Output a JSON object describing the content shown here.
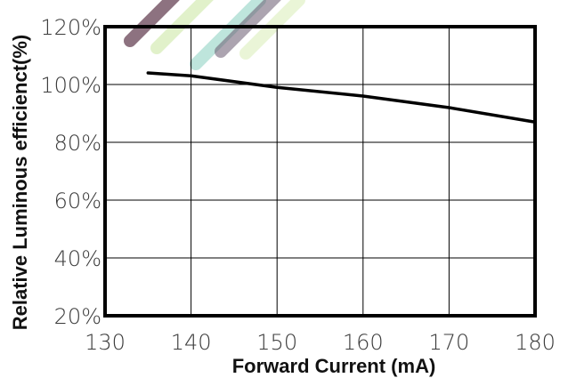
{
  "chart_data": {
    "type": "line",
    "title": "",
    "xlabel": "Forward Current (mA)",
    "ylabel": "Relative  Luminous efficienct(%)",
    "xlim": [
      130,
      180
    ],
    "ylim": [
      20,
      120
    ],
    "x_ticks": [
      130,
      140,
      150,
      160,
      170,
      180
    ],
    "x_tick_labels": [
      "130",
      "140",
      "150",
      "160",
      "170",
      "180"
    ],
    "y_ticks": [
      20,
      40,
      60,
      80,
      100,
      120
    ],
    "y_tick_labels": [
      "20%",
      "40%",
      "60%",
      "80%",
      "100%",
      "120%"
    ],
    "grid": true,
    "legend": "none",
    "series": [
      {
        "x": [
          135,
          140,
          150,
          160,
          170,
          180
        ],
        "y": [
          104,
          103,
          99,
          96,
          92,
          87
        ]
      }
    ],
    "colors": {
      "line": "#000000",
      "grid": "#000000",
      "frame": "#000000"
    },
    "decoration": {
      "watermark_stripes": [
        "#7a5a6a",
        "#c9e7a0",
        "#b8e3d9",
        "#6a5a70",
        "#d7ecb0"
      ]
    }
  }
}
